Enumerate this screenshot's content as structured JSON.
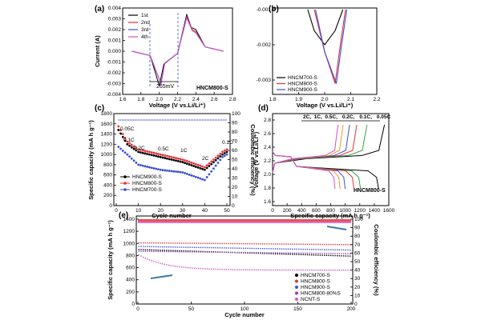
{
  "panels": {
    "a": {
      "label": "(a)",
      "xlabel": "Voltage (V vs.Li/Li⁺)",
      "ylabel": "Current (A)",
      "xlim": [
        1.6,
        2.8
      ],
      "ylim": [
        -0.004,
        0.004
      ],
      "xticks": [
        "1.6",
        "1.8",
        "2.0",
        "2.2",
        "2.4",
        "2.6",
        "2.8"
      ],
      "yticks": [
        "0.004",
        "0.003",
        "0.002",
        "0.001",
        "0.000",
        "-0.001",
        "-0.002",
        "-0.003",
        "-0.004"
      ],
      "annotation": "265mV",
      "sample": "HNCM800-S",
      "legend": [
        {
          "name": "1st",
          "color": "#000000"
        },
        {
          "name": "2nd",
          "color": "#e8303a"
        },
        {
          "name": "3rd",
          "color": "#3a50d8"
        },
        {
          "name": "4th",
          "color": "#d050d0"
        }
      ]
    },
    "b": {
      "label": "(b)",
      "xlabel": "Voltage (V vs.Li/Li⁺)",
      "xlim": [
        1.8,
        2.2
      ],
      "ylim": [
        -0.0033,
        -0.001
      ],
      "xticks": [
        "1.8",
        "1.9",
        "2.0",
        "2.1",
        "2.2"
      ],
      "yticks": [
        "-0.001",
        "-0.002",
        "-0.003"
      ],
      "legend": [
        {
          "name": "HNCM700-S",
          "color": "#000000"
        },
        {
          "name": "HNCM800-S",
          "color": "#e8303a"
        },
        {
          "name": "HNCM900-S",
          "color": "#3a50d8"
        }
      ]
    },
    "c": {
      "label": "(c)",
      "xlabel": "Cycle number",
      "ylabel": "Specific capacity (mA h g⁻¹)",
      "y2label": "Coulombic efficiency (%)",
      "xticks": [
        "0",
        "10",
        "20",
        "30",
        "40",
        "50"
      ],
      "yticks": [
        "0",
        "200",
        "400",
        "600",
        "800",
        "1000",
        "1200",
        "1400",
        "1600",
        "1800"
      ],
      "y2ticks": [
        "0",
        "10",
        "20",
        "30",
        "40",
        "50",
        "60",
        "70",
        "80",
        "90",
        "100"
      ],
      "rates": [
        "0.05C",
        "0.1C",
        "0.2C",
        "0.5C",
        "1C",
        "2C",
        "0.1C"
      ],
      "legend": [
        {
          "name": "HNCM900-S",
          "color": "#000000"
        },
        {
          "name": "HNCM800-S",
          "color": "#e8303a"
        },
        {
          "name": "HNCM700-S",
          "color": "#3a50d8"
        }
      ]
    },
    "d": {
      "label": "(d)",
      "xlabel": "Specific capacity (mA h g⁻¹)",
      "ylabel": "Voltage (V vs.Li/Li⁺)",
      "xticks": [
        "0",
        "200",
        "400",
        "600",
        "800",
        "1000",
        "1200",
        "1400",
        "1600"
      ],
      "yticks": [
        "1.6",
        "1.8",
        "2.0",
        "2.2",
        "2.4",
        "2.6",
        "2.8"
      ],
      "sample": "HNCM800-S",
      "rates": [
        {
          "name": "2C",
          "color": "#d050d0"
        },
        {
          "name": "1C",
          "color": "#e6a020"
        },
        {
          "name": "0.5C",
          "color": "#3a50d8"
        },
        {
          "name": "0.2C",
          "color": "#e8303a"
        },
        {
          "name": "0.1C",
          "color": "#3aa050"
        },
        {
          "name": "0.05C",
          "color": "#000000"
        }
      ]
    },
    "e": {
      "label": "(e)",
      "xlabel": "Cycle number",
      "ylabel": "Specific capacity (mA h g⁻¹)",
      "y2label": "Coulombic efficiency (%)",
      "xticks": [
        "0",
        "50",
        "100",
        "150",
        "200"
      ],
      "yticks": [
        "0",
        "200",
        "400",
        "600",
        "800",
        "1000",
        "1200",
        "1400"
      ],
      "y2ticks": [
        "0",
        "10",
        "20",
        "30",
        "40",
        "50",
        "60",
        "70",
        "80",
        "90",
        "100"
      ],
      "legend": [
        {
          "name": "HNCM700-S",
          "color": "#000000"
        },
        {
          "name": "HNCM800-S",
          "color": "#e8303a"
        },
        {
          "name": "HNCM900-S",
          "color": "#3a50d8"
        },
        {
          "name": "HNCM800-80%S",
          "color": "#9040b0"
        },
        {
          "name": "NCNT-S",
          "color": "#d050d0"
        }
      ]
    }
  },
  "chart_data": [
    {
      "type": "line",
      "panel": "a",
      "x_key": "Voltage (V)",
      "series": [
        {
          "name": "1st",
          "color": "#000000",
          "points": [
            [
              1.7,
              0.0
            ],
            [
              1.9,
              -0.0004
            ],
            [
              2.0,
              -0.0032
            ],
            [
              2.05,
              -0.0012
            ],
            [
              2.2,
              -0.0002
            ],
            [
              2.3,
              0.0034
            ],
            [
              2.35,
              0.0022
            ],
            [
              2.4,
              0.002
            ],
            [
              2.5,
              0.0004
            ],
            [
              2.7,
              0.0
            ]
          ]
        },
        {
          "name": "2nd",
          "color": "#e8303a",
          "points": [
            [
              1.7,
              0.0
            ],
            [
              1.9,
              -0.0004
            ],
            [
              2.02,
              -0.003
            ],
            [
              2.06,
              -0.0011
            ],
            [
              2.2,
              -0.0002
            ],
            [
              2.3,
              0.0032
            ],
            [
              2.36,
              0.002
            ],
            [
              2.4,
              0.0018
            ],
            [
              2.5,
              0.0004
            ],
            [
              2.7,
              0.0
            ]
          ]
        },
        {
          "name": "3rd",
          "color": "#3a50d8",
          "points": [
            [
              1.7,
              0.0
            ],
            [
              1.9,
              -0.0004
            ],
            [
              2.02,
              -0.003
            ],
            [
              2.06,
              -0.0011
            ],
            [
              2.2,
              -0.0002
            ],
            [
              2.3,
              0.0031
            ],
            [
              2.36,
              0.0019
            ],
            [
              2.4,
              0.0017
            ],
            [
              2.5,
              0.0004
            ],
            [
              2.7,
              0.0
            ]
          ]
        },
        {
          "name": "4th",
          "color": "#d050d0",
          "points": [
            [
              1.7,
              0.0
            ],
            [
              1.9,
              -0.0004
            ],
            [
              2.02,
              -0.003
            ],
            [
              2.06,
              -0.0011
            ],
            [
              2.2,
              -0.0002
            ],
            [
              2.3,
              0.0031
            ],
            [
              2.36,
              0.0019
            ],
            [
              2.4,
              0.0017
            ],
            [
              2.5,
              0.0004
            ],
            [
              2.7,
              0.0
            ]
          ]
        }
      ]
    },
    {
      "type": "line",
      "panel": "b",
      "series": [
        {
          "name": "HNCM700-S",
          "color": "#000000",
          "points": [
            [
              1.935,
              -0.001
            ],
            [
              1.96,
              -0.0016
            ],
            [
              2.0,
              -0.002
            ],
            [
              2.04,
              -0.0016
            ],
            [
              2.07,
              -0.001
            ]
          ]
        },
        {
          "name": "HNCM800-S",
          "color": "#e8303a",
          "points": [
            [
              1.96,
              -0.001
            ],
            [
              2.0,
              -0.0022
            ],
            [
              2.04,
              -0.0031
            ],
            [
              2.06,
              -0.002
            ],
            [
              2.08,
              -0.001
            ]
          ]
        },
        {
          "name": "HNCM900-S",
          "color": "#3a50d8",
          "points": [
            [
              1.965,
              -0.001
            ],
            [
              2.0,
              -0.0022
            ],
            [
              2.045,
              -0.0031
            ],
            [
              2.065,
              -0.002
            ],
            [
              2.085,
              -0.001
            ]
          ]
        }
      ]
    },
    {
      "type": "scatter",
      "panel": "c",
      "series": [
        {
          "name": "HNCM900-S",
          "color": "#000000",
          "points": [
            [
              1,
              1480
            ],
            [
              5,
              1200
            ],
            [
              10,
              1050
            ],
            [
              20,
              950
            ],
            [
              30,
              850
            ],
            [
              40,
              700
            ],
            [
              48,
              1000
            ],
            [
              50,
              1050
            ]
          ]
        },
        {
          "name": "HNCM800-S",
          "color": "#e8303a",
          "points": [
            [
              1,
              1550
            ],
            [
              5,
              1250
            ],
            [
              10,
              1100
            ],
            [
              20,
              1000
            ],
            [
              30,
              900
            ],
            [
              40,
              750
            ],
            [
              48,
              1050
            ],
            [
              50,
              1100
            ]
          ]
        },
        {
          "name": "HNCM700-S",
          "color": "#3a50d8",
          "points": [
            [
              1,
              1150
            ],
            [
              5,
              1000
            ],
            [
              10,
              800
            ],
            [
              20,
              700
            ],
            [
              30,
              650
            ],
            [
              40,
              500
            ],
            [
              48,
              950
            ],
            [
              50,
              1000
            ]
          ]
        }
      ]
    },
    {
      "type": "line",
      "panel": "d",
      "series": [
        {
          "name": "0.05C",
          "color": "#000000",
          "discharge_end": 1460,
          "charge_end": 1540
        },
        {
          "name": "0.1C",
          "color": "#3aa050",
          "discharge_end": 1210,
          "charge_end": 1300
        },
        {
          "name": "0.2C",
          "color": "#e8303a",
          "discharge_end": 1120,
          "charge_end": 1160
        },
        {
          "name": "0.5C",
          "color": "#3a50d8",
          "discharge_end": 1000,
          "charge_end": 1060
        },
        {
          "name": "1C",
          "color": "#e6a020",
          "discharge_end": 930,
          "charge_end": 970
        },
        {
          "name": "2C",
          "color": "#d050d0",
          "discharge_end": 860,
          "charge_end": 900
        }
      ]
    },
    {
      "type": "scatter",
      "panel": "e",
      "series": [
        {
          "name": "HNCM700-S",
          "color": "#000000",
          "start": 900,
          "end": 790
        },
        {
          "name": "HNCM800-S",
          "color": "#e8303a",
          "start": 1010,
          "end": 980
        },
        {
          "name": "HNCM900-S",
          "color": "#3a50d8",
          "start": 950,
          "end": 890
        },
        {
          "name": "HNCM800-80%S",
          "color": "#9040b0",
          "start": 870,
          "end": 830
        },
        {
          "name": "NCNT-S",
          "color": "#d050d0",
          "start": 820,
          "end": 560
        }
      ]
    }
  ]
}
